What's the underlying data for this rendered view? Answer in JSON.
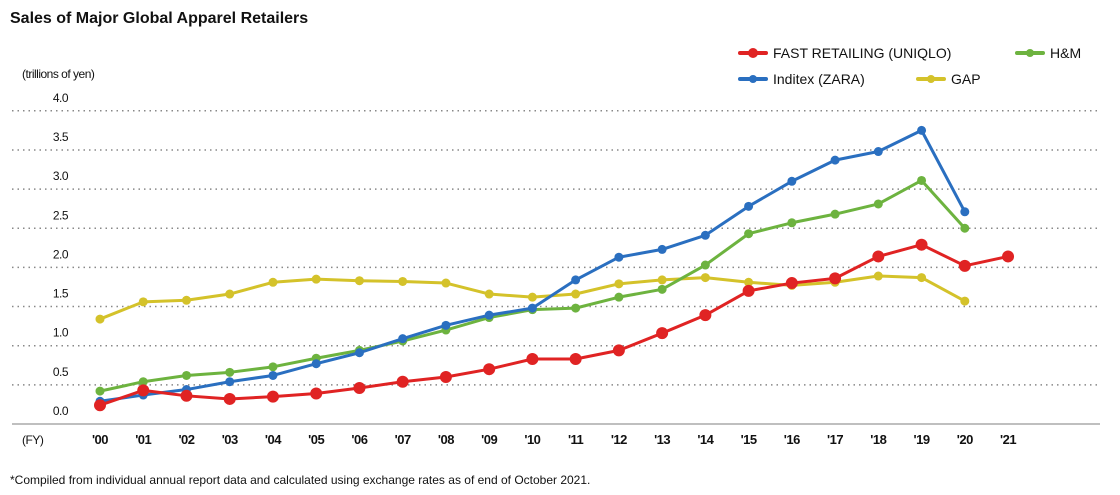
{
  "chart_data": {
    "type": "line",
    "title": "Sales of Major Global Apparel Retailers",
    "ylabel": "(trillions of yen)",
    "xlabel": "(FY)",
    "ylim": [
      0,
      4.0
    ],
    "yticks": [
      "0.0",
      "0.5",
      "1.0",
      "1.5",
      "2.0",
      "2.5",
      "3.0",
      "3.5",
      "4.0"
    ],
    "grid": "horizontal dotted",
    "legend_position": "top-right",
    "categories": [
      "'00",
      "'01",
      "'02",
      "'03",
      "'04",
      "'05",
      "'06",
      "'07",
      "'08",
      "'09",
      "'10",
      "'11",
      "'12",
      "'13",
      "'14",
      "'15",
      "'16",
      "'17",
      "'18",
      "'19",
      "'20",
      "'21"
    ],
    "series": [
      {
        "name": "FAST RETAILING (UNIQLO)",
        "color": "#e02323",
        "values": [
          0.24,
          0.43,
          0.36,
          0.32,
          0.35,
          0.39,
          0.46,
          0.54,
          0.6,
          0.7,
          0.83,
          0.83,
          0.94,
          1.16,
          1.39,
          1.7,
          1.8,
          1.86,
          2.14,
          2.29,
          2.02,
          2.14
        ]
      },
      {
        "name": "H&M",
        "color": "#6db33f",
        "values": [
          0.42,
          0.54,
          0.62,
          0.66,
          0.73,
          0.84,
          0.94,
          1.06,
          1.2,
          1.36,
          1.46,
          1.48,
          1.62,
          1.72,
          2.03,
          2.43,
          2.57,
          2.68,
          2.81,
          3.11,
          2.5,
          null
        ]
      },
      {
        "name": "Inditex (ZARA)",
        "color": "#2a6fc0",
        "values": [
          0.29,
          0.37,
          0.44,
          0.54,
          0.62,
          0.77,
          0.91,
          1.09,
          1.26,
          1.39,
          1.48,
          1.84,
          2.13,
          2.23,
          2.41,
          2.78,
          3.1,
          3.37,
          3.48,
          3.75,
          2.71,
          null
        ]
      },
      {
        "name": "GAP",
        "color": "#d4c22a",
        "values": [
          1.34,
          1.56,
          1.58,
          1.66,
          1.81,
          1.85,
          1.83,
          1.82,
          1.8,
          1.66,
          1.62,
          1.66,
          1.79,
          1.84,
          1.87,
          1.81,
          1.77,
          1.81,
          1.89,
          1.87,
          1.57,
          null
        ]
      }
    ],
    "footnote": "*Compiled from individual annual report data and calculated using exchange rates as of end of October 2021."
  }
}
